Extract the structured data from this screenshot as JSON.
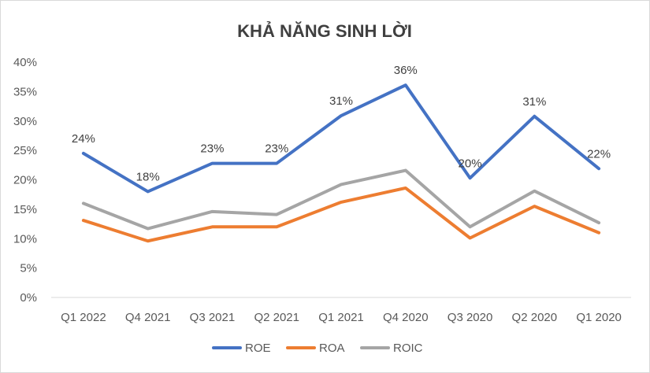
{
  "chart_data": {
    "type": "line",
    "title": "KHẢ NĂNG SINH LỜI",
    "xlabel": "",
    "ylabel": "",
    "categories": [
      "Q1 2022",
      "Q4 2021",
      "Q3 2021",
      "Q2 2021",
      "Q1 2021",
      "Q4 2020",
      "Q3 2020",
      "Q2 2020",
      "Q1 2020"
    ],
    "ylim": [
      0,
      40
    ],
    "yticks": [
      0,
      5,
      10,
      15,
      20,
      25,
      30,
      35,
      40
    ],
    "ytick_labels": [
      "0%",
      "5%",
      "10%",
      "15%",
      "20%",
      "25%",
      "30%",
      "35%",
      "40%"
    ],
    "grid": false,
    "legend_position": "bottom",
    "series": [
      {
        "name": "ROE",
        "color": "#4472C4",
        "values": [
          24.5,
          18.0,
          22.8,
          22.8,
          30.9,
          36.1,
          20.3,
          30.8,
          21.9
        ],
        "data_labels": [
          "24%",
          "18%",
          "23%",
          "23%",
          "31%",
          "36%",
          "20%",
          "31%",
          "22%"
        ]
      },
      {
        "name": "ROA",
        "color": "#ED7D31",
        "values": [
          13.1,
          9.6,
          12.0,
          12.0,
          16.2,
          18.6,
          10.1,
          15.5,
          11.0
        ]
      },
      {
        "name": "ROIC",
        "color": "#A5A5A5",
        "values": [
          16.0,
          11.7,
          14.6,
          14.1,
          19.2,
          21.6,
          12.0,
          18.1,
          12.7
        ]
      }
    ]
  }
}
